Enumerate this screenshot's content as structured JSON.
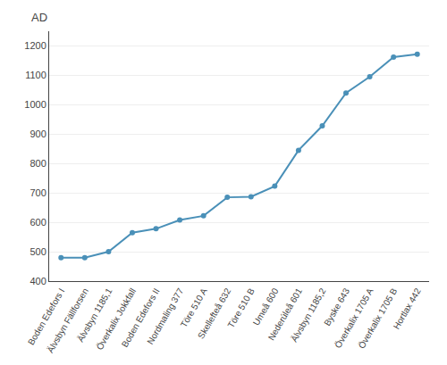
{
  "chart_data": {
    "type": "line",
    "categories": [
      "Boden Edefors I",
      "Älvsbyn Fällforsen",
      "Älvsbyn 1185,1",
      "Överkalix Jokkfall",
      "Boden Edefors II",
      "Nordmaling 377",
      "Töre 510 A",
      "Skellefteå 632",
      "Töre 510 B",
      "Umeå 600",
      "Nederúleå 601",
      "Älvsbyn 1185,2",
      "Byske 643",
      "Överkalix 1705 A",
      "Överkalix 1705 B",
      "Hortlax 442"
    ],
    "values": [
      480,
      480,
      500,
      565,
      578,
      608,
      622,
      685,
      687,
      723,
      845,
      928,
      1040,
      1095,
      1162,
      1172
    ],
    "color": "#4A90B8",
    "marker": "circle",
    "ylabel": "AD",
    "ylim": [
      400,
      1250
    ],
    "yticks": [
      400,
      500,
      600,
      700,
      800,
      900,
      1000,
      1100,
      1200
    ],
    "grid": true
  }
}
